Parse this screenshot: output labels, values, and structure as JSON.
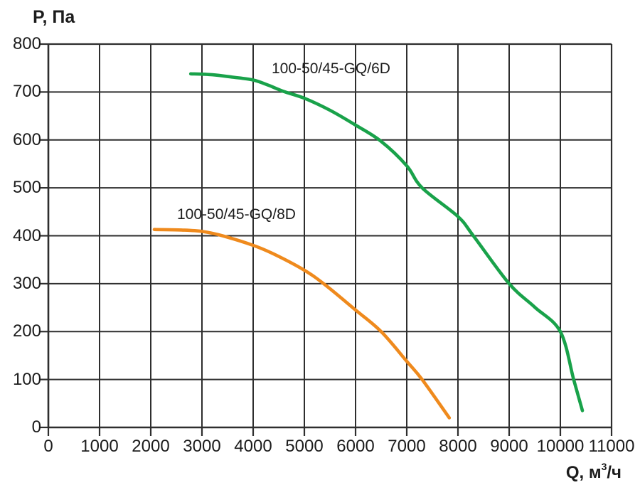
{
  "window": {
    "background": "#ffffff"
  },
  "chart_data": {
    "type": "line",
    "title": "",
    "grid": "on",
    "legend": "inline-labels-near-curves",
    "y_axis": {
      "title": "P, Па",
      "min": 0,
      "max": 800,
      "tick_step": 100,
      "ticks": [
        0,
        100,
        200,
        300,
        400,
        500,
        600,
        700,
        800
      ]
    },
    "x_axis": {
      "title_prefix": "Q, м",
      "title_sup": "3",
      "title_suffix": "/ч",
      "min": 0,
      "max": 11000,
      "tick_step": 1000,
      "ticks": [
        0,
        1000,
        2000,
        3000,
        4000,
        5000,
        6000,
        7000,
        8000,
        9000,
        10000,
        11000
      ]
    },
    "series": [
      {
        "name": "100-50/45-GQ/6D",
        "color": "#19A24A",
        "points": [
          [
            2780,
            738
          ],
          [
            3200,
            736
          ],
          [
            3600,
            731
          ],
          [
            4000,
            725
          ],
          [
            4300,
            714
          ],
          [
            4600,
            701
          ],
          [
            5000,
            687
          ],
          [
            5500,
            662
          ],
          [
            6000,
            631
          ],
          [
            6500,
            597
          ],
          [
            7000,
            546
          ],
          [
            7300,
            500
          ],
          [
            8000,
            440
          ],
          [
            8300,
            400
          ],
          [
            9000,
            300
          ],
          [
            9500,
            251
          ],
          [
            10000,
            200
          ],
          [
            10260,
            100
          ],
          [
            10430,
            35
          ]
        ]
      },
      {
        "name": "100-50/45-GQ/8D",
        "color": "#EF8A1D",
        "points": [
          [
            2070,
            413
          ],
          [
            2600,
            412
          ],
          [
            3000,
            409
          ],
          [
            3400,
            400
          ],
          [
            4000,
            380
          ],
          [
            4400,
            362
          ],
          [
            5000,
            328
          ],
          [
            5400,
            298
          ],
          [
            6000,
            245
          ],
          [
            6500,
            200
          ],
          [
            7000,
            138
          ],
          [
            7300,
            100
          ],
          [
            7830,
            20
          ]
        ]
      }
    ]
  },
  "styles": {
    "grid_color": "#2e2e2e",
    "axis_color": "#1c1c1c",
    "text_color": "#1c1c1c",
    "curve_width": 4.6
  }
}
